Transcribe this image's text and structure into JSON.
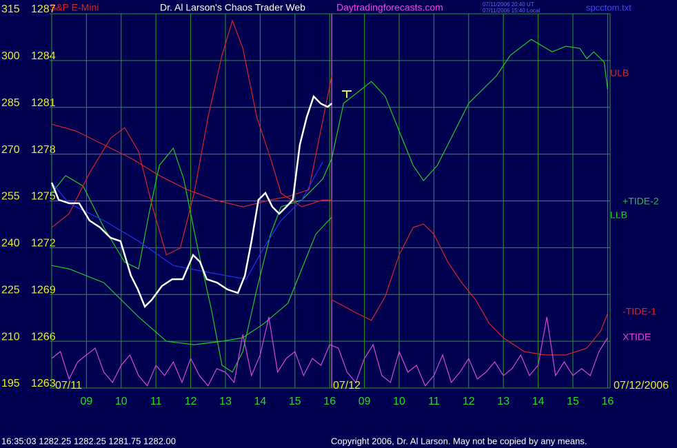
{
  "chart_data": {
    "type": "line",
    "title": "Dr. Al Larson's Chaos Trader Web",
    "instrument": "S&P E-Mini",
    "website": "Daytradingforecasts.com",
    "timestamps": [
      "07/11/2006 20:40 UT",
      "07/11/2006 15:40 Local"
    ],
    "file": "spcctom.txt",
    "status": "16:35:03  1282.25 1282.25 1281.75 1282.00",
    "copyright": "Copyright 2006, Dr. Al Larson. May not be copied by any means.",
    "annotations": [
      "07/11",
      "07/12",
      "07/12/2006"
    ],
    "xlim": [
      0,
      16
    ],
    "xticks": [
      {
        "value": 1,
        "label": "09"
      },
      {
        "value": 2,
        "label": "10"
      },
      {
        "value": 3,
        "label": "11"
      },
      {
        "value": 4,
        "label": "12"
      },
      {
        "value": 5,
        "label": "13"
      },
      {
        "value": 6,
        "label": "14"
      },
      {
        "value": 7,
        "label": "15"
      },
      {
        "value": 8,
        "label": "16"
      },
      {
        "value": 9,
        "label": "09"
      },
      {
        "value": 10,
        "label": "10"
      },
      {
        "value": 11,
        "label": "11"
      },
      {
        "value": 12,
        "label": "12"
      },
      {
        "value": 13,
        "label": "13"
      },
      {
        "value": 14,
        "label": "14"
      },
      {
        "value": 15,
        "label": "15"
      },
      {
        "value": 16,
        "label": "16"
      }
    ],
    "ylim": [
      195,
      315
    ],
    "yticks": [
      195,
      210,
      225,
      240,
      255,
      270,
      285,
      300,
      315
    ],
    "y2lim": [
      1263,
      1287
    ],
    "y2ticks": [
      1263,
      1266,
      1269,
      1272,
      1275,
      1278,
      1281,
      1284,
      1287
    ],
    "grid": true,
    "series": [
      {
        "color": "#ffffff",
        "axis": "y2",
        "x": [
          0,
          0.2,
          0.5,
          0.79,
          1.09,
          1.39,
          1.69,
          1.98,
          2.28,
          2.48,
          2.68,
          2.88,
          3.17,
          3.47,
          3.77,
          4.07,
          4.27,
          4.46,
          4.76,
          5.06,
          5.36,
          5.56,
          5.75,
          5.95,
          6.15,
          6.35,
          6.55,
          6.75,
          6.94,
          7.14,
          7.34,
          7.54,
          7.74,
          7.94,
          8.06
        ],
        "values": [
          1276.17,
          1275.07,
          1274.85,
          1274.85,
          1273.74,
          1273.3,
          1272.64,
          1272.42,
          1270.21,
          1269.32,
          1268.22,
          1268.66,
          1269.54,
          1269.98,
          1269.98,
          1271.53,
          1271.09,
          1269.98,
          1269.76,
          1269.32,
          1269.1,
          1270.21,
          1272.42,
          1275.07,
          1275.51,
          1274.62,
          1274.18,
          1274.62,
          1275.07,
          1278.6,
          1280.37,
          1281.7,
          1281.25,
          1281.03,
          1281.25
        ]
      },
      {
        "name": "ULB",
        "color": "#dd2222",
        "x": [
          0,
          0.7,
          1.5,
          2.3,
          3.1,
          3.9,
          4.7,
          5.5,
          6.3,
          6.8,
          7.4,
          8.06
        ],
        "values": [
          279.6,
          277.4,
          273.0,
          268.6,
          263.1,
          258.6,
          255.3,
          253.1,
          255.3,
          256.4,
          258.6,
          295.1
        ]
      },
      {
        "name": "+TIDE-2",
        "color": "#22cc22",
        "x": [
          0,
          0.4,
          0.9,
          1.5,
          2.1,
          2.5,
          2.8,
          3.1,
          3.5,
          3.8,
          4.2,
          4.6,
          4.9,
          5.2,
          5.5,
          5.9,
          6.3,
          6.6,
          7.2,
          7.8,
          8.06,
          8.4,
          9.2,
          9.6,
          10.0,
          10.4,
          10.7,
          11.1,
          11.6,
          12.0,
          12.8,
          13.2,
          13.8,
          14.4,
          14.8,
          15.2,
          15.4,
          15.6,
          15.9,
          16
        ],
        "values": [
          257.5,
          263.1,
          259.8,
          246.5,
          235.4,
          233.2,
          250.9,
          266.4,
          271.9,
          262.0,
          239.9,
          220.0,
          202.3,
          200.1,
          206.7,
          226.6,
          244.3,
          253.1,
          255.3,
          262.0,
          268.6,
          286.3,
          293.3,
          288.5,
          277.4,
          266.4,
          261.5,
          266.4,
          277.4,
          286.3,
          295.1,
          301.7,
          306.8,
          302.8,
          304.6,
          303.9,
          300.6,
          302.8,
          299.5,
          290.7
        ]
      },
      {
        "name": "LLB",
        "color": "#22cc22",
        "x": [
          0,
          0.5,
          1.5,
          2.5,
          3.3,
          4.1,
          4.9,
          5.5,
          6.1,
          6.8,
          7.6,
          8.06
        ],
        "values": [
          234.3,
          233.2,
          228.8,
          217.8,
          210.0,
          208.9,
          210.0,
          211.1,
          215.6,
          222.2,
          244.3,
          249.8
        ]
      },
      {
        "name": "-TIDE-1",
        "color": "#dd2222",
        "x": [
          0,
          0.5,
          1.1,
          1.7,
          2.1,
          2.5,
          2.9,
          3.3,
          3.7,
          4.1,
          4.5,
          4.9,
          5.2,
          5.5,
          5.9,
          6.3,
          6.6,
          7.2,
          7.8,
          8.06,
          8.06,
          8.8,
          9.2,
          9.6,
          10.0,
          10.4,
          10.7,
          11.0,
          11.4,
          11.8,
          12.2,
          12.6,
          13.0,
          13.6,
          14.2,
          14.8,
          15.4,
          15.8,
          16
        ],
        "values": [
          246.5,
          250.9,
          264.2,
          275.2,
          278.5,
          270.8,
          253.1,
          237.7,
          239.9,
          257.5,
          281.9,
          301.7,
          312.8,
          304.0,
          281.9,
          268.6,
          257.5,
          253.1,
          255.3,
          255.3,
          223.3,
          218.9,
          216.7,
          224.4,
          237.7,
          246.5,
          247.6,
          244.3,
          235.4,
          228.8,
          223.3,
          215.6,
          211.1,
          206.7,
          205.6,
          205.6,
          207.8,
          213.3,
          218.9
        ]
      },
      {
        "name": "XTIDE",
        "color": "#dd44dd",
        "x": [
          0,
          0.25,
          0.5,
          0.75,
          1,
          1.25,
          1.5,
          1.75,
          2,
          2.25,
          2.5,
          2.75,
          3,
          3.25,
          3.5,
          3.75,
          4,
          4.25,
          4.5,
          4.75,
          5,
          5.25,
          5.5,
          5.75,
          6,
          6.25,
          6.5,
          6.75,
          7,
          7.25,
          7.5,
          7.75,
          8,
          8.25,
          8.5,
          8.75,
          9,
          9.25,
          9.5,
          9.75,
          10,
          10.25,
          10.5,
          10.75,
          11,
          11.25,
          11.5,
          11.75,
          12,
          12.25,
          12.5,
          12.75,
          13,
          13.25,
          13.5,
          13.75,
          14,
          14.25,
          14.5,
          14.75,
          15,
          15.25,
          15.5,
          15.75,
          16
        ],
        "values": [
          204.5,
          206.7,
          197.9,
          203.4,
          205.6,
          207.8,
          200.1,
          196.8,
          202.3,
          205.6,
          199.0,
          195.7,
          202.3,
          199.0,
          203.4,
          196.8,
          204.5,
          199.0,
          195.7,
          201.2,
          200.1,
          196.8,
          212.2,
          199.0,
          205.6,
          217.8,
          200.1,
          204.5,
          206.7,
          199.0,
          204.5,
          202.3,
          208.9,
          207.8,
          200.1,
          196.8,
          204.5,
          208.9,
          199.0,
          196.8,
          206.7,
          200.1,
          202.3,
          195.7,
          199.0,
          205.6,
          196.8,
          200.1,
          204.5,
          197.9,
          200.1,
          203.4,
          199.0,
          201.2,
          205.6,
          199.0,
          202.3,
          217.8,
          199.0,
          203.4,
          199.0,
          201.2,
          199.0,
          206.7,
          211.1
        ]
      },
      {
        "color": "#2233ee",
        "x": [
          0,
          0.5,
          1.5,
          2.5,
          3.5,
          4.5,
          5.6,
          6.1,
          6.6,
          7.2,
          7.8
        ],
        "values": [
          260.9,
          254.2,
          248.7,
          242.1,
          234.3,
          232.1,
          229.9,
          239.9,
          248.7,
          255.3,
          267.5
        ]
      }
    ]
  }
}
